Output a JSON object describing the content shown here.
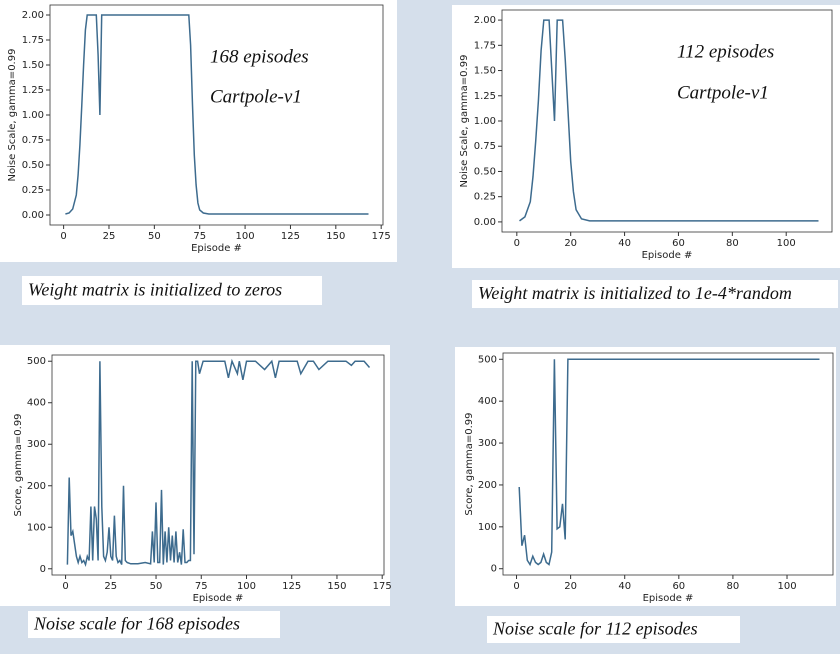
{
  "chart_data": [
    {
      "type": "line",
      "caption": "Weight matrix is initialized to zeros",
      "annotations": [
        "168 episodes",
        "Cartpole-v1"
      ],
      "xlabel": "Episode #",
      "ylabel": "Noise Scale, gamma=0.99",
      "color": "#3d6b8e",
      "x": [
        1,
        3,
        5,
        7,
        8,
        9,
        10,
        11,
        12,
        13,
        18,
        19,
        20,
        21,
        69,
        70,
        71,
        72,
        73,
        74,
        75,
        77,
        80,
        168
      ],
      "values": [
        0.01,
        0.02,
        0.06,
        0.2,
        0.4,
        0.7,
        1.1,
        1.5,
        1.85,
        2.0,
        2.0,
        1.6,
        1.0,
        2.0,
        2.0,
        1.7,
        1.1,
        0.6,
        0.3,
        0.12,
        0.05,
        0.02,
        0.01,
        0.01
      ],
      "xlim": [
        -7.5,
        176
      ],
      "xticks": [
        0,
        25,
        50,
        75,
        100,
        125,
        150,
        175
      ],
      "ylim": [
        -0.1,
        2.1
      ],
      "yticks": [
        {
          "value": 0,
          "label": "0.00"
        },
        0.25,
        {
          "value": 0.5,
          "label": "0.50"
        },
        0.75,
        {
          "value": 1,
          "label": "1.00"
        },
        1.25,
        {
          "value": 1.5,
          "label": "1.50"
        },
        1.75,
        {
          "value": 2,
          "label": "2.00"
        }
      ]
    },
    {
      "type": "line",
      "caption": "Weight matrix is initialized to 1e-4*random",
      "annotations": [
        "112 episodes",
        "Cartpole-v1"
      ],
      "xlabel": "Episode #",
      "ylabel": "Noise Scale, gamma=0.99",
      "color": "#3d6b8e",
      "x": [
        1,
        3,
        5,
        6,
        7,
        8,
        9,
        10,
        12,
        13,
        14,
        15,
        17,
        18,
        19,
        20,
        21,
        22,
        24,
        27,
        112
      ],
      "values": [
        0.01,
        0.05,
        0.2,
        0.45,
        0.8,
        1.2,
        1.7,
        2.0,
        2.0,
        1.5,
        1.0,
        2.0,
        2.0,
        1.6,
        1.1,
        0.6,
        0.3,
        0.12,
        0.03,
        0.01,
        0.01
      ],
      "xlim": [
        -5.5,
        117
      ],
      "xticks": [
        0,
        20,
        40,
        60,
        80,
        100
      ],
      "ylim": [
        -0.1,
        2.1
      ],
      "yticks": [
        {
          "value": 0,
          "label": "0.00"
        },
        0.25,
        {
          "value": 0.5,
          "label": "0.50"
        },
        0.75,
        {
          "value": 1,
          "label": "1.00"
        },
        1.25,
        {
          "value": 1.5,
          "label": "1.50"
        },
        1.75,
        {
          "value": 2,
          "label": "2.00"
        }
      ]
    },
    {
      "type": "line",
      "caption": "Noise scale for 168 episodes",
      "xlabel": "Episode #",
      "ylabel": "Score, gamma=0.99",
      "color": "#3d6b8e",
      "x": [
        1,
        2,
        3,
        4,
        5,
        6,
        7,
        8,
        9,
        10,
        11,
        12,
        13,
        14,
        15,
        16,
        17,
        18,
        19,
        20,
        21,
        22,
        23,
        24,
        25,
        26,
        27,
        28,
        29,
        30,
        31,
        32,
        33,
        34,
        36,
        40,
        44,
        47,
        48,
        49,
        50,
        51,
        52,
        53,
        54,
        55,
        56,
        57,
        58,
        59,
        60,
        61,
        62,
        63,
        64,
        65,
        66,
        67,
        68,
        69,
        70,
        71,
        72,
        73,
        74,
        76,
        80,
        88,
        90,
        92,
        95,
        96,
        98,
        100,
        105,
        110,
        114,
        116,
        118,
        122,
        128,
        130,
        134,
        137,
        140,
        145,
        150,
        155,
        158,
        160,
        165,
        168
      ],
      "values": [
        10,
        220,
        80,
        90,
        60,
        30,
        15,
        30,
        15,
        20,
        10,
        30,
        20,
        150,
        20,
        150,
        120,
        20,
        500,
        150,
        30,
        20,
        40,
        100,
        30,
        20,
        128,
        30,
        15,
        20,
        10,
        200,
        20,
        15,
        12,
        12,
        15,
        12,
        90,
        15,
        160,
        15,
        15,
        190,
        10,
        90,
        15,
        100,
        20,
        80,
        15,
        90,
        15,
        40,
        10,
        95,
        15,
        15,
        20,
        20,
        500,
        35,
        500,
        500,
        470,
        500,
        500,
        500,
        460,
        500,
        470,
        500,
        455,
        500,
        500,
        480,
        500,
        460,
        500,
        500,
        500,
        470,
        500,
        500,
        480,
        500,
        500,
        500,
        490,
        500,
        500,
        485
      ],
      "xlim": [
        -7.5,
        176
      ],
      "xticks": [
        0,
        25,
        50,
        75,
        100,
        125,
        150,
        175
      ],
      "ylim": [
        -15,
        515
      ],
      "yticks": [
        0,
        100,
        200,
        300,
        400,
        500
      ]
    },
    {
      "type": "line",
      "caption": "Noise scale for 112 episodes",
      "xlabel": "Episode #",
      "ylabel": "Score, gamma=0.99",
      "color": "#3d6b8e",
      "x": [
        1,
        2,
        3,
        4,
        5,
        6,
        7,
        8,
        9,
        10,
        11,
        12,
        13,
        14,
        15,
        16,
        17,
        18,
        19,
        112
      ],
      "values": [
        195,
        55,
        80,
        20,
        10,
        30,
        15,
        10,
        15,
        35,
        15,
        10,
        40,
        500,
        95,
        100,
        155,
        70,
        500,
        500
      ],
      "xlim": [
        -5,
        117
      ],
      "xticks": [
        0,
        20,
        40,
        60,
        80,
        100
      ],
      "ylim": [
        -15,
        515
      ],
      "yticks": [
        0,
        100,
        200,
        300,
        400,
        500
      ]
    }
  ]
}
